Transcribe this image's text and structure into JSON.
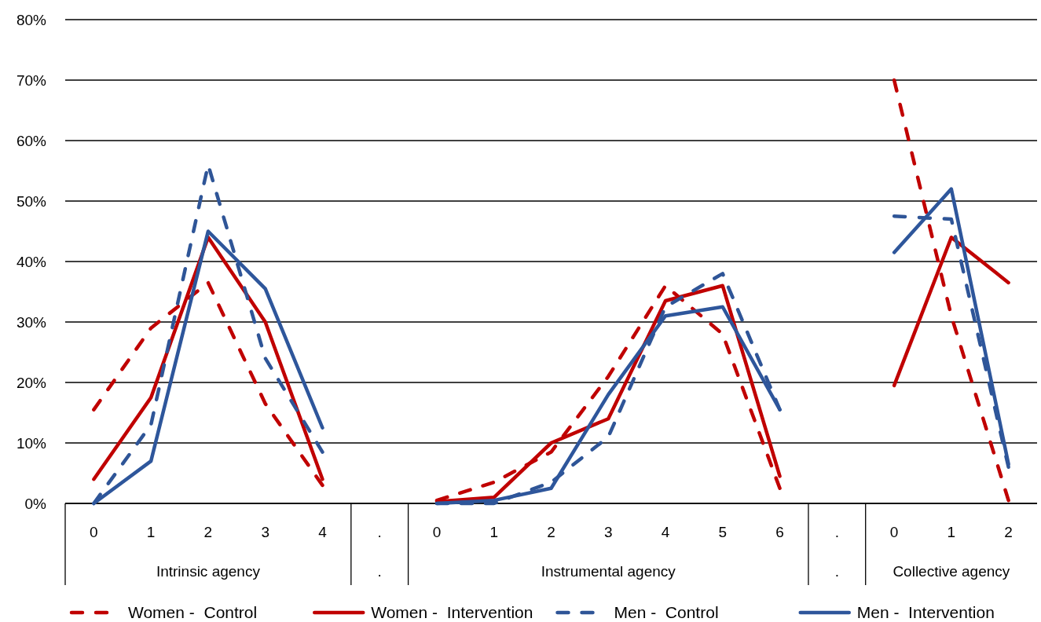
{
  "chart_data": {
    "type": "line",
    "categories": [
      "0",
      "1",
      "2",
      "3",
      "4",
      ".",
      "0",
      "1",
      "2",
      "3",
      "4",
      "5",
      "6",
      ".",
      "0",
      "1",
      "2"
    ],
    "annotations": [
      "Intrinsic agency",
      ".",
      "Instrumental agency",
      ".",
      "Collective agency"
    ],
    "series": [
      {
        "name": "Women -  Control",
        "color": "#c00000",
        "line_style": "dashed",
        "values": [
          15.5,
          29,
          36.5,
          16.5,
          3,
          null,
          0.5,
          3.5,
          8.5,
          21,
          36,
          28,
          2.5,
          null,
          70,
          31,
          0.5
        ]
      },
      {
        "name": "Women -  Intervention",
        "color": "#c00000",
        "line_style": "solid",
        "values": [
          4,
          17.5,
          44,
          30,
          4,
          null,
          0.3,
          1,
          10,
          14,
          33.5,
          36,
          4.5,
          null,
          19.5,
          44,
          36.5
        ]
      },
      {
        "name": "Men -  Control",
        "color": "#2f5597",
        "line_style": "dashed",
        "values": [
          0,
          13,
          56,
          24,
          8.5,
          null,
          0,
          0,
          3.5,
          11,
          32.5,
          38,
          15.5,
          null,
          47.5,
          47,
          6
        ]
      },
      {
        "name": "Men -  Intervention",
        "color": "#2e569b",
        "line_style": "solid",
        "values": [
          0,
          7,
          45,
          35.5,
          12.5,
          null,
          0,
          0.5,
          2.5,
          18,
          31,
          32.5,
          15.5,
          null,
          41.5,
          52,
          6.5
        ]
      }
    ],
    "ylim": [
      0,
      80
    ],
    "yticks": [
      {
        "value": 0,
        "label": "0%"
      },
      {
        "value": 10,
        "label": "10%"
      },
      {
        "value": 20,
        "label": "20%"
      },
      {
        "value": 30,
        "label": "30%"
      },
      {
        "value": 40,
        "label": "40%"
      },
      {
        "value": 50,
        "label": "50%"
      },
      {
        "value": 60,
        "label": "60%"
      },
      {
        "value": 70,
        "label": "70%"
      },
      {
        "value": 80,
        "label": "80%"
      }
    ],
    "grid": "y",
    "legend": "bottom",
    "marker": "none"
  }
}
